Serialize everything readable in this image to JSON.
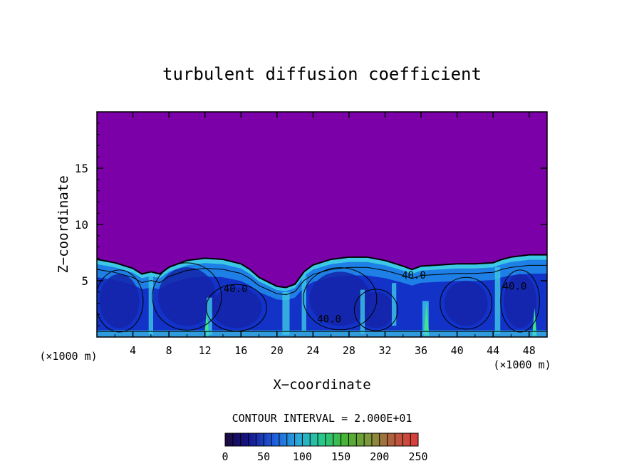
{
  "chart_data": {
    "type": "heatmap",
    "title": "turbulent diffusion coefficient",
    "xlabel": "X−coordinate",
    "ylabel": "Z−coordinate",
    "x_unit_left": "(×1000 m)",
    "x_unit_right": "(×1000 m)",
    "xlim": [
      0,
      50
    ],
    "ylim": [
      0,
      20
    ],
    "x_ticks": [
      4,
      8,
      12,
      16,
      20,
      24,
      28,
      32,
      36,
      40,
      44,
      48
    ],
    "y_ticks": [
      5,
      10,
      15
    ],
    "background_value": 0,
    "colors": {
      "background_field": "#7b00a8",
      "low_turbulence": "#1232c8",
      "mid_turbulence": "#1e7fe6",
      "edge_turbulence": "#3dc8e6",
      "high_turbulence": "#3de68a",
      "contour_line": "#000000"
    },
    "boundary_layer_top": [
      [
        0,
        6.9
      ],
      [
        2,
        6.6
      ],
      [
        4,
        6.1
      ],
      [
        5,
        5.6
      ],
      [
        6,
        5.8
      ],
      [
        7,
        5.6
      ],
      [
        8,
        6.2
      ],
      [
        10,
        6.8
      ],
      [
        12,
        7.0
      ],
      [
        14,
        6.9
      ],
      [
        16,
        6.5
      ],
      [
        17,
        6.0
      ],
      [
        18,
        5.3
      ],
      [
        19,
        4.9
      ],
      [
        20,
        4.5
      ],
      [
        21,
        4.4
      ],
      [
        22,
        4.7
      ],
      [
        23,
        5.8
      ],
      [
        24,
        6.4
      ],
      [
        26,
        6.9
      ],
      [
        28,
        7.1
      ],
      [
        30,
        7.1
      ],
      [
        32,
        6.8
      ],
      [
        34,
        6.3
      ],
      [
        35,
        6.0
      ],
      [
        36,
        6.3
      ],
      [
        38,
        6.4
      ],
      [
        40,
        6.5
      ],
      [
        42,
        6.5
      ],
      [
        44,
        6.6
      ],
      [
        45,
        6.9
      ],
      [
        46,
        7.1
      ],
      [
        48,
        7.3
      ],
      [
        50,
        7.3
      ]
    ],
    "contour_labels": [
      {
        "text": "40.0",
        "x": 15.4,
        "y": 4.0
      },
      {
        "text": "40.0",
        "x": 25.8,
        "y": 1.3
      },
      {
        "text": "40.0",
        "x": 35.2,
        "y": 5.2
      },
      {
        "text": "40.0",
        "x": 46.4,
        "y": 4.2
      }
    ],
    "contour_interval_label": "CONTOUR INTERVAL = 2.000E+01",
    "colorbar": {
      "min": 0,
      "max": 250,
      "ticks": [
        0,
        50,
        100,
        150,
        200,
        250
      ]
    }
  }
}
